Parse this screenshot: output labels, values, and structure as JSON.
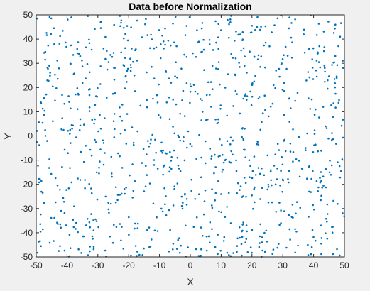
{
  "chart_data": {
    "type": "scatter",
    "title": "Data before Normalization",
    "xlabel": "X",
    "ylabel": "Y",
    "xlim": [
      -50,
      50
    ],
    "ylim": [
      -50,
      50
    ],
    "xticks": [
      -50,
      -40,
      -30,
      -20,
      -10,
      0,
      10,
      20,
      30,
      40,
      50
    ],
    "yticks": [
      -50,
      -40,
      -30,
      -20,
      -10,
      0,
      10,
      20,
      30,
      40,
      50
    ],
    "grid": false,
    "marker_color": "#0072bd",
    "plot_background": "#ffffff",
    "figure_background": "#f0f0f0",
    "point_count": 1000,
    "series": [
      {
        "distribution": "uniform",
        "x_range": [
          -50,
          50
        ],
        "y_range": [
          -50,
          50
        ],
        "points": [
          [
            -49.7,
            48.5
          ],
          [
            -45.2,
            42.1
          ],
          [
            -38.6,
            49.0
          ],
          [
            -31.0,
            44.2
          ],
          [
            -22.4,
            47.7
          ],
          [
            -13.9,
            41.6
          ],
          [
            -4.8,
            49.2
          ],
          [
            3.7,
            44.4
          ],
          [
            12.1,
            47.9
          ],
          [
            19.6,
            42.7
          ],
          [
            28.3,
            48.6
          ],
          [
            36.9,
            43.9
          ],
          [
            44.8,
            47.2
          ],
          [
            48.6,
            41.0
          ],
          [
            -47.1,
            31.5
          ],
          [
            -40.2,
            36.8
          ],
          [
            -33.4,
            29.7
          ],
          [
            -24.9,
            34.3
          ],
          [
            -17.3,
            31.1
          ],
          [
            -9.6,
            37.9
          ],
          [
            -1.2,
            32.6
          ],
          [
            7.4,
            35.5
          ],
          [
            15.8,
            30.2
          ],
          [
            23.9,
            37.4
          ],
          [
            31.6,
            33.1
          ],
          [
            39.9,
            36.2
          ],
          [
            46.7,
            30.4
          ],
          [
            -46.0,
            22.8
          ],
          [
            -37.8,
            25.6
          ],
          [
            -29.2,
            21.4
          ],
          [
            -20.5,
            26.9
          ],
          [
            -11.7,
            23.7
          ],
          [
            -2.9,
            27.8
          ],
          [
            5.8,
            22.2
          ],
          [
            14.6,
            25.1
          ],
          [
            22.7,
            28.5
          ],
          [
            30.4,
            21.9
          ],
          [
            38.2,
            26.4
          ],
          [
            47.5,
            24.0
          ],
          [
            -48.4,
            13.6
          ],
          [
            -41.6,
            16.9
          ],
          [
            -32.7,
            11.8
          ],
          [
            -25.1,
            17.4
          ],
          [
            -16.2,
            12.5
          ],
          [
            -6.9,
            15.9
          ],
          [
            1.6,
            18.3
          ],
          [
            9.8,
            11.2
          ],
          [
            18.4,
            16.4
          ],
          [
            26.7,
            13.3
          ],
          [
            34.8,
            17.8
          ],
          [
            43.1,
            12.0
          ],
          [
            -44.6,
            6.1
          ],
          [
            -35.9,
            2.4
          ],
          [
            -27.8,
            7.3
          ],
          [
            -18.9,
            3.5
          ],
          [
            -10.3,
            8.6
          ],
          [
            -0.7,
            1.9
          ],
          [
            8.2,
            6.8
          ],
          [
            16.9,
            3.0
          ],
          [
            25.4,
            8.1
          ],
          [
            33.3,
            2.7
          ],
          [
            41.8,
            7.6
          ],
          [
            49.1,
            4.2
          ],
          [
            -49.0,
            -3.8
          ],
          [
            -39.7,
            -7.1
          ],
          [
            -30.6,
            -2.6
          ],
          [
            -22.9,
            -8.4
          ],
          [
            -13.4,
            -4.3
          ],
          [
            -4.2,
            -9.0
          ],
          [
            4.9,
            -2.2
          ],
          [
            13.7,
            -7.7
          ],
          [
            21.6,
            -3.4
          ],
          [
            29.9,
            -8.9
          ],
          [
            37.4,
            -5.0
          ],
          [
            45.9,
            -1.7
          ],
          [
            -45.8,
            -13.2
          ],
          [
            -36.5,
            -17.6
          ],
          [
            -28.1,
            -11.9
          ],
          [
            -19.7,
            -16.3
          ],
          [
            -8.7,
            -12.6
          ],
          [
            0.4,
            -18.1
          ],
          [
            10.6,
            -14.0
          ],
          [
            18.0,
            -19.4
          ],
          [
            27.2,
            -12.3
          ],
          [
            35.5,
            -16.8
          ],
          [
            44.0,
            -13.7
          ],
          [
            -47.9,
            -23.5
          ],
          [
            -41.0,
            -27.2
          ],
          [
            -34.2,
            -21.6
          ],
          [
            -23.6,
            -26.5
          ],
          [
            -15.0,
            -22.9
          ],
          [
            -5.5,
            -28.7
          ],
          [
            2.8,
            -24.1
          ],
          [
            11.9,
            -29.3
          ],
          [
            20.8,
            -21.3
          ],
          [
            28.9,
            -27.6
          ],
          [
            39.1,
            -23.2
          ],
          [
            47.8,
            -28.1
          ],
          [
            -44.1,
            -33.9
          ],
          [
            -37.2,
            -38.4
          ],
          [
            -26.4,
            -31.7
          ],
          [
            -17.9,
            -36.2
          ],
          [
            -7.8,
            -32.8
          ],
          [
            1.1,
            -37.6
          ],
          [
            9.3,
            -31.2
          ],
          [
            17.2,
            -35.8
          ],
          [
            24.6,
            -39.1
          ],
          [
            32.9,
            -33.5
          ],
          [
            42.4,
            -37.0
          ],
          [
            49.4,
            -31.9
          ],
          [
            -49.2,
            -43.7
          ],
          [
            -40.8,
            -47.4
          ],
          [
            -31.8,
            -41.5
          ],
          [
            -21.7,
            -46.6
          ],
          [
            -12.6,
            -42.8
          ],
          [
            -3.4,
            -48.3
          ],
          [
            6.3,
            -44.0
          ],
          [
            15.1,
            -47.9
          ],
          [
            23.3,
            -41.9
          ],
          [
            31.2,
            -46.2
          ],
          [
            40.6,
            -43.3
          ],
          [
            46.3,
            -48.8
          ]
        ]
      }
    ]
  }
}
